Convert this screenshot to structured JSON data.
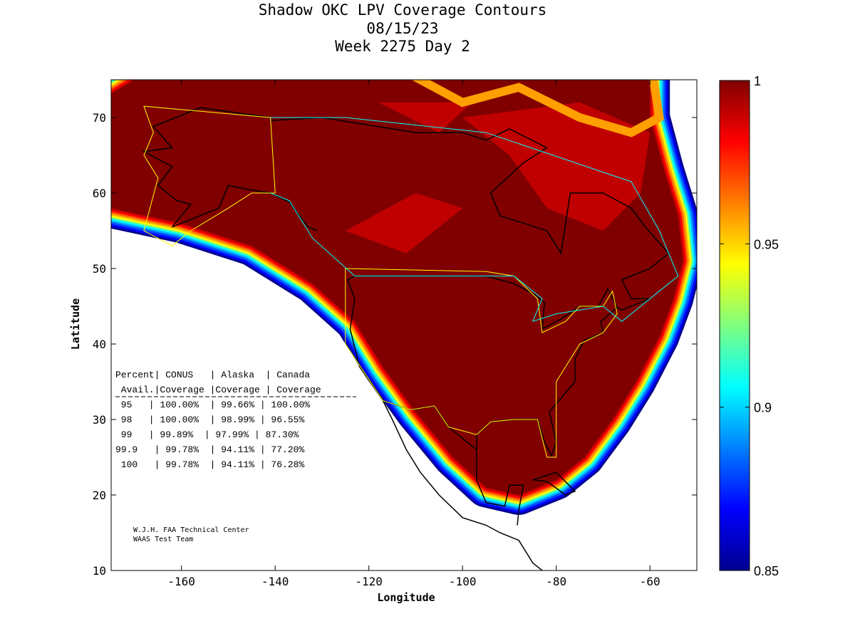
{
  "title": {
    "line1": "Shadow OKC LPV Coverage Contours",
    "line2": "08/15/23",
    "line3": "Week 2275 Day 2"
  },
  "chart_data": {
    "type": "heatmap",
    "title": "Shadow OKC LPV Coverage Contours",
    "xlabel": "Longitude",
    "ylabel": "Latitude",
    "xlim": [
      -175,
      -50
    ],
    "ylim": [
      10,
      75
    ],
    "xticks": [
      "-160",
      "-140",
      "-120",
      "-100",
      "-80",
      "-60"
    ],
    "yticks": [
      "10",
      "20",
      "30",
      "40",
      "50",
      "60",
      "70"
    ],
    "colorbar": {
      "range": [
        0.85,
        1
      ],
      "ticks": [
        "0.85",
        "0.9",
        "0.95",
        "1"
      ],
      "colormap": "jet"
    },
    "grid": false
  },
  "table": {
    "header1": "Percent| CONUS   | Alaska  | Canada",
    "header2": " Avail.|Coverage |Coverage | Coverage",
    "rows": [
      " 95   | 100.00%  | 99.66% | 100.00%",
      " 98   | 100.00%  | 98.99% | 96.55%",
      " 99   | 99.89%  | 97.99% | 87.30%",
      "99.9   | 99.78%  | 94.11% | 77.20%",
      " 100   | 99.78%  | 94.11% | 76.28%"
    ]
  },
  "credits": {
    "line1": "W.J.H. FAA Technical Center",
    "line2": "WAAS Test Team"
  },
  "colors": {
    "jet_dark_red": "#800000",
    "border_us": "#ffff00",
    "border_ca": "#00ffff"
  }
}
